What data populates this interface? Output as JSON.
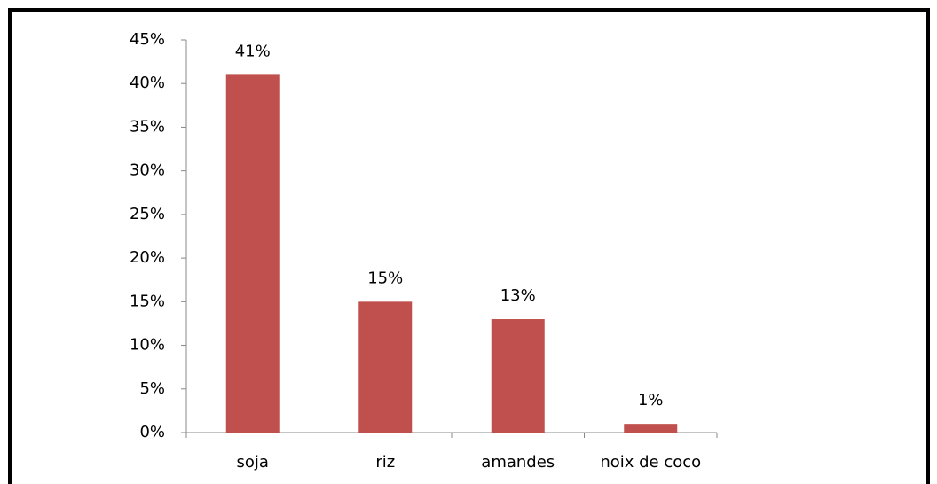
{
  "chart_data": {
    "type": "bar",
    "categories": [
      "soja",
      "riz",
      "amandes",
      "noix de coco"
    ],
    "values": [
      41,
      15,
      13,
      1
    ],
    "value_labels": [
      "41%",
      "15%",
      "13%",
      "1%"
    ],
    "color": "#c0504d",
    "ylim": [
      0,
      45
    ],
    "yticks": [
      {
        "value": 0,
        "label": "0%"
      },
      {
        "value": 5,
        "label": "5%"
      },
      {
        "value": 10,
        "label": "10%"
      },
      {
        "value": 15,
        "label": "15%"
      },
      {
        "value": 20,
        "label": "20%"
      },
      {
        "value": 25,
        "label": "25%"
      },
      {
        "value": 30,
        "label": "30%"
      },
      {
        "value": 35,
        "label": "35%"
      },
      {
        "value": 40,
        "label": "40%"
      },
      {
        "value": 45,
        "label": "45%"
      }
    ],
    "grid": false
  }
}
